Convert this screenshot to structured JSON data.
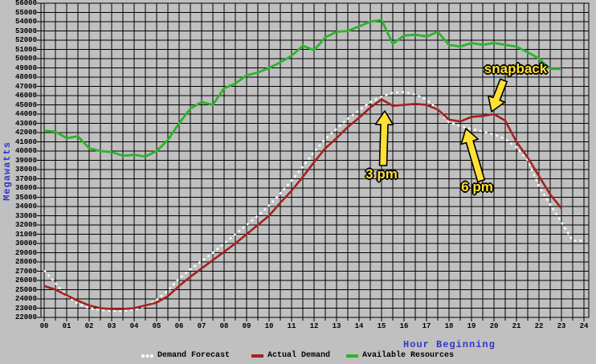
{
  "colors": {
    "background": "#c0c0c0",
    "grid": "#000000",
    "tick_text": "#000000",
    "axis_title_text": "#3333cc",
    "annotation_text": "#ffe135",
    "annotation_outline": "#000000",
    "forecast_line": "#ffffff",
    "actual_line": "#a52121",
    "resources_line": "#2db32d"
  },
  "chart_data": {
    "type": "line",
    "title": "",
    "xlabel": "Hour Beginning",
    "ylabel": "Megawatts",
    "xlim": [
      0,
      24
    ],
    "ylim": [
      22000,
      56000
    ],
    "ytick_step": 1000,
    "xticks": [
      "00",
      "01",
      "02",
      "03",
      "04",
      "05",
      "06",
      "07",
      "08",
      "09",
      "10",
      "11",
      "12",
      "13",
      "14",
      "15",
      "16",
      "17",
      "18",
      "19",
      "20",
      "21",
      "22",
      "23",
      "24"
    ],
    "grid": "on",
    "grid_minor_x_hours": 0.5,
    "legend_position": "bottom",
    "x_start": 0,
    "x_step": 0.5,
    "series": [
      {
        "name": "Demand Forecast",
        "color": "#ffffff",
        "line_style": "dotted",
        "values": [
          27100,
          25700,
          24300,
          23500,
          23000,
          22800,
          22700,
          22700,
          22800,
          23200,
          23900,
          24900,
          26200,
          27200,
          28100,
          29000,
          30000,
          31000,
          32000,
          33000,
          34100,
          35400,
          36800,
          38300,
          39900,
          41300,
          42400,
          43500,
          44400,
          45300,
          45900,
          46300,
          46400,
          46100,
          45600,
          44500,
          43100,
          42700,
          42400,
          42100,
          41800,
          41300,
          40400,
          39000,
          36200,
          34200,
          32300,
          30300,
          30300
        ]
      },
      {
        "name": "Actual Demand",
        "color": "#a52121",
        "line_style": "solid",
        "values": [
          25400,
          25000,
          24400,
          23800,
          23300,
          23000,
          22900,
          22900,
          23000,
          23300,
          23600,
          24300,
          25400,
          26400,
          27300,
          28200,
          29100,
          30000,
          31000,
          32000,
          33000,
          34400,
          35700,
          37200,
          38800,
          40300,
          41400,
          42600,
          43600,
          44700,
          45600,
          44900,
          45000,
          45100,
          45000,
          44500,
          43400,
          43200,
          43700,
          43800,
          44000,
          43300,
          41000,
          39300,
          37300,
          35300,
          33800
        ]
      },
      {
        "name": "Available Resources",
        "color": "#2db32d",
        "line_style": "solid",
        "values": [
          42200,
          42100,
          41400,
          41600,
          40300,
          40000,
          39900,
          39500,
          39600,
          39400,
          40000,
          41200,
          43000,
          44600,
          45300,
          45000,
          46800,
          47300,
          48200,
          48500,
          49000,
          49600,
          50300,
          51400,
          50900,
          52300,
          52900,
          53000,
          53500,
          54000,
          54200,
          51600,
          52500,
          52600,
          52400,
          52900,
          51500,
          51300,
          51700,
          51500,
          51700,
          51500,
          51300,
          50700,
          50000,
          48900,
          48900
        ]
      }
    ],
    "annotations": [
      {
        "label": "3 pm",
        "color": "#ffe135",
        "label_center": [
          475,
          217
        ],
        "arrow_tail": [
          477,
          206
        ],
        "arrow_tip": [
          479,
          138
        ]
      },
      {
        "label": "6 pm",
        "color": "#ffe135",
        "label_center": [
          594,
          233
        ],
        "arrow_tail": [
          599,
          225
        ],
        "arrow_tip": [
          580,
          160
        ]
      },
      {
        "label": "snapback",
        "color": "#ffe135",
        "label_center": [
          642,
          86
        ],
        "arrow_tail": [
          627,
          100
        ],
        "arrow_tip": [
          612,
          139
        ]
      }
    ]
  }
}
